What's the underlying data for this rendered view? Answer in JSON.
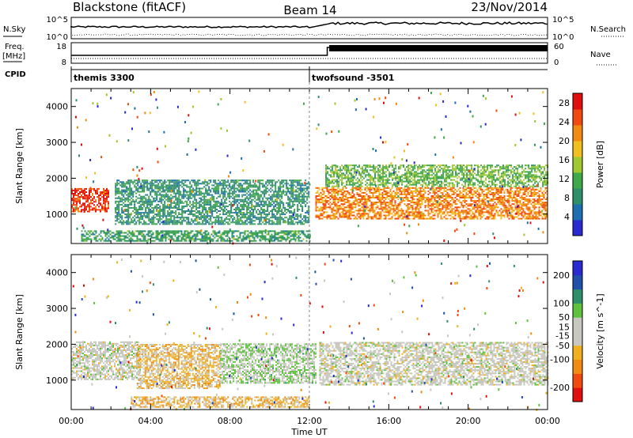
{
  "header": {
    "left": "Blackstone (fitACF)",
    "center": "Beam 14",
    "right": "23/Nov/2014"
  },
  "status_panel": {
    "nsky_label": "N.Sky",
    "nsky_ticks": [
      "10^5",
      "10^0"
    ],
    "nsearch_label": "N.Search",
    "nsearch_ticks": [
      "10^5",
      "10^0"
    ],
    "freq_label": "Freq.",
    "freq_unit": "[MHz]",
    "freq_ticks": [
      "18",
      "8"
    ],
    "nave_label": "Nave",
    "nave_ticks": [
      "60",
      "0"
    ],
    "cpid_label": "CPID",
    "cpid_segments": [
      {
        "label": "themis 3300",
        "start_hour": 0.0,
        "end_hour": 12.0
      },
      {
        "label": "twofsound -3501",
        "start_hour": 12.0,
        "end_hour": 24.0
      }
    ]
  },
  "time_axis": {
    "label": "Time UT",
    "tick_labels": [
      "00:00",
      "04:00",
      "08:00",
      "12:00",
      "16:00",
      "20:00",
      "00:00"
    ],
    "tick_hours": [
      0,
      4,
      8,
      12,
      16,
      20,
      24
    ]
  },
  "colors": {
    "power_scale": [
      "#2a2ad0",
      "#1f6fb0",
      "#2f8f6a",
      "#3fa84a",
      "#a0c830",
      "#f0c020",
      "#f08a10",
      "#f04a10",
      "#e01010"
    ],
    "velocity_scale": [
      "#e01010",
      "#f04a10",
      "#f08a10",
      "#f0b020",
      "#c8c8c0",
      "#c8c8c0",
      "#60c040",
      "#2f8f6a",
      "#2050a8",
      "#2a2ad0"
    ],
    "status_line": "#000000"
  },
  "chart_data": [
    {
      "type": "heatmap",
      "title": "",
      "xlabel": "",
      "ylabel": "Slant Range [km]",
      "y_ticks": [
        "1000",
        "2000",
        "3000",
        "4000"
      ],
      "y_tick_values": [
        1000,
        2000,
        3000,
        4000
      ],
      "ylim": [
        180,
        4500
      ],
      "xlim_hours": [
        0,
        24
      ],
      "colorbar_label": "Power [dB]",
      "colorbar_ticks": [
        "28",
        "24",
        "20",
        "16",
        "12",
        "8",
        "4"
      ],
      "colorbar_values": [
        28,
        24,
        20,
        16,
        12,
        8,
        4
      ],
      "colorbar_range": [
        0,
        30
      ],
      "features": [
        {
          "name": "early echo band",
          "start_hour": 0.0,
          "end_hour": 1.9,
          "range_km": [
            1050,
            1700
          ],
          "level": 26
        },
        {
          "name": "midday band",
          "start_hour": 2.2,
          "end_hour": 12.0,
          "range_km": [
            700,
            1950
          ],
          "level": 9
        },
        {
          "name": "near-range echoes",
          "start_hour": 0.5,
          "end_hour": 12.0,
          "range_km": [
            230,
            520
          ],
          "level": 10
        },
        {
          "name": "afternoon strong band",
          "start_hour": 12.3,
          "end_hour": 24.0,
          "range_km": [
            850,
            1750
          ],
          "level": 22
        },
        {
          "name": "afternoon outer band",
          "start_hour": 12.8,
          "end_hour": 24.0,
          "range_km": [
            1750,
            2350
          ],
          "level": 13
        }
      ]
    },
    {
      "type": "heatmap",
      "title": "",
      "xlabel": "Time UT",
      "ylabel": "Slant Range [km]",
      "y_ticks": [
        "1000",
        "2000",
        "3000",
        "4000"
      ],
      "y_tick_values": [
        1000,
        2000,
        3000,
        4000
      ],
      "ylim": [
        180,
        4500
      ],
      "xlim_hours": [
        0,
        24
      ],
      "colorbar_label": "Velocity [m s^-1]",
      "colorbar_ticks": [
        "200",
        "100",
        "50",
        "15",
        "-15",
        "-50",
        "-100",
        "-200"
      ],
      "colorbar_values": [
        200,
        100,
        50,
        15,
        -15,
        -50,
        -100,
        -200
      ],
      "colorbar_range": [
        -250,
        250
      ],
      "features": [
        {
          "name": "early ground scatter",
          "start_hour": 0.0,
          "end_hour": 3.5,
          "range_km": [
            1000,
            2050
          ],
          "level": 0
        },
        {
          "name": "midday negative velocities",
          "start_hour": 3.3,
          "end_hour": 7.5,
          "range_km": [
            750,
            2000
          ],
          "level": -60
        },
        {
          "name": "positive velocities",
          "start_hour": 7.5,
          "end_hour": 12.3,
          "range_km": [
            900,
            2000
          ],
          "level": 40
        },
        {
          "name": "near-range negative",
          "start_hour": 3.0,
          "end_hour": 12.0,
          "range_km": [
            230,
            520
          ],
          "level": -70
        },
        {
          "name": "afternoon ground scatter",
          "start_hour": 12.5,
          "end_hour": 24.0,
          "range_km": [
            850,
            2050
          ],
          "level": 0
        }
      ]
    }
  ]
}
